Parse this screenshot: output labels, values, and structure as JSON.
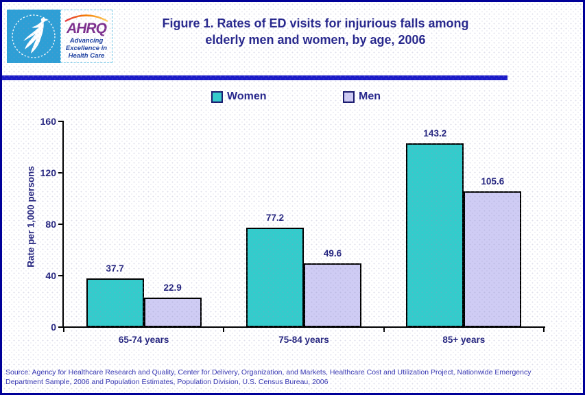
{
  "header": {
    "title_line1": "Figure 1. Rates of ED visits for injurious falls among",
    "title_line2": "elderly men and women, by age, 2006"
  },
  "logo": {
    "org_abbr": "AHRQ",
    "tagline_lines": [
      "Advancing",
      "Excellence in",
      "Health Care"
    ]
  },
  "footer": {
    "source_line1": "Source: Agency for Healthcare Research and Quality, Center for Delivery, Organization, and Markets, Healthcare Cost and Utilization Project, Nationwide Emergency",
    "source_line2": "Department Sample, 2006 and Population Estimates, Population Division, U.S. Census Bureau, 2006"
  },
  "chart_data": {
    "type": "bar",
    "title": "Figure 1. Rates of ED visits for injurious falls among elderly men and women, by age, 2006",
    "categories": [
      "65-74 years",
      "75-84 years",
      "85+ years"
    ],
    "series": [
      {
        "name": "Women",
        "values": [
          37.7,
          77.2,
          143.2
        ],
        "color": "#33cccc"
      },
      {
        "name": "Men",
        "values": [
          22.9,
          49.6,
          105.6
        ],
        "color": "#cfccf4"
      }
    ],
    "xlabel": "",
    "ylabel": "Rate per 1,000 persons",
    "ylim": [
      0,
      160
    ],
    "yticks": [
      0,
      40,
      80,
      120,
      160
    ],
    "grid": false,
    "legend_position": "top"
  },
  "colors": {
    "title_navy": "#26268c",
    "label_navy": "#23237e",
    "divider_blue": "#1a1ac8",
    "page_border_navy": "#000099",
    "source_text": "#3434b2",
    "hhs_blue": "#2d9fd6",
    "ahrq_purple": "#7d2e8d",
    "women_bar": "#33cccc",
    "men_bar": "#cfccf4"
  }
}
